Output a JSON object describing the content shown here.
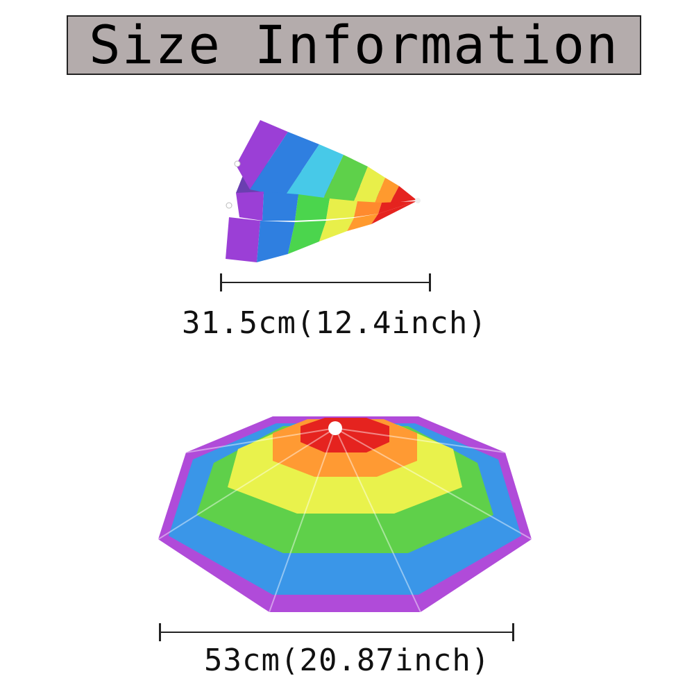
{
  "title": "Size Information",
  "folded_size_label": "31.5cm(12.4inch)",
  "open_size_label": "53cm(20.87inch)"
}
